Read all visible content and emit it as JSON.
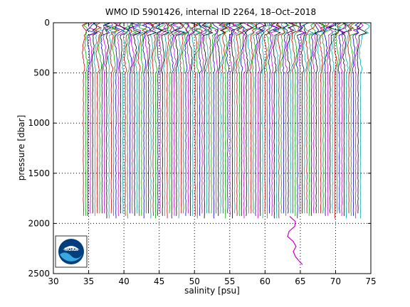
{
  "chart_data": {
    "type": "line",
    "title": "WMO ID 5901426, internal ID 2264, 18–Oct–2018",
    "xlabel": "salinity [psu]",
    "ylabel": "pressure [dbar]",
    "xlim": [
      30,
      75
    ],
    "ylim": [
      0,
      2500
    ],
    "y_reversed": true,
    "x_ticks": [
      30,
      35,
      40,
      45,
      50,
      55,
      60,
      65,
      70,
      75
    ],
    "y_ticks": [
      0,
      500,
      1000,
      1500,
      2000,
      2500
    ],
    "grid": true,
    "grid_style": "dotted",
    "profile_offset_step_psu": 0.33,
    "profile_count": 120,
    "profile_start_psu": 34.3,
    "max_profile_depth_dbar": 1950,
    "profile_colors": [
      "#cc0000",
      "#00aa00",
      "#0000cc",
      "#cc00cc",
      "#000000",
      "#00aaaa"
    ],
    "latest_profile": {
      "color": "#cc00cc",
      "pressure": [
        1930,
        1980,
        2030,
        2080,
        2130,
        2180,
        2230,
        2280,
        2330,
        2380,
        2410
      ],
      "salinity": [
        63.5,
        64.3,
        64.2,
        63.4,
        63.2,
        64.0,
        64.4,
        64.0,
        64.3,
        64.9,
        65.3
      ]
    }
  },
  "logo": {
    "text": "NOAA",
    "colors": {
      "outer": "#003e7e",
      "wave": "#3aa9e0",
      "inner": "#ffffff",
      "bird": "#003e7e"
    }
  },
  "colors": {
    "axis": "#000000",
    "grid": "#000000",
    "background": "#ffffff"
  }
}
